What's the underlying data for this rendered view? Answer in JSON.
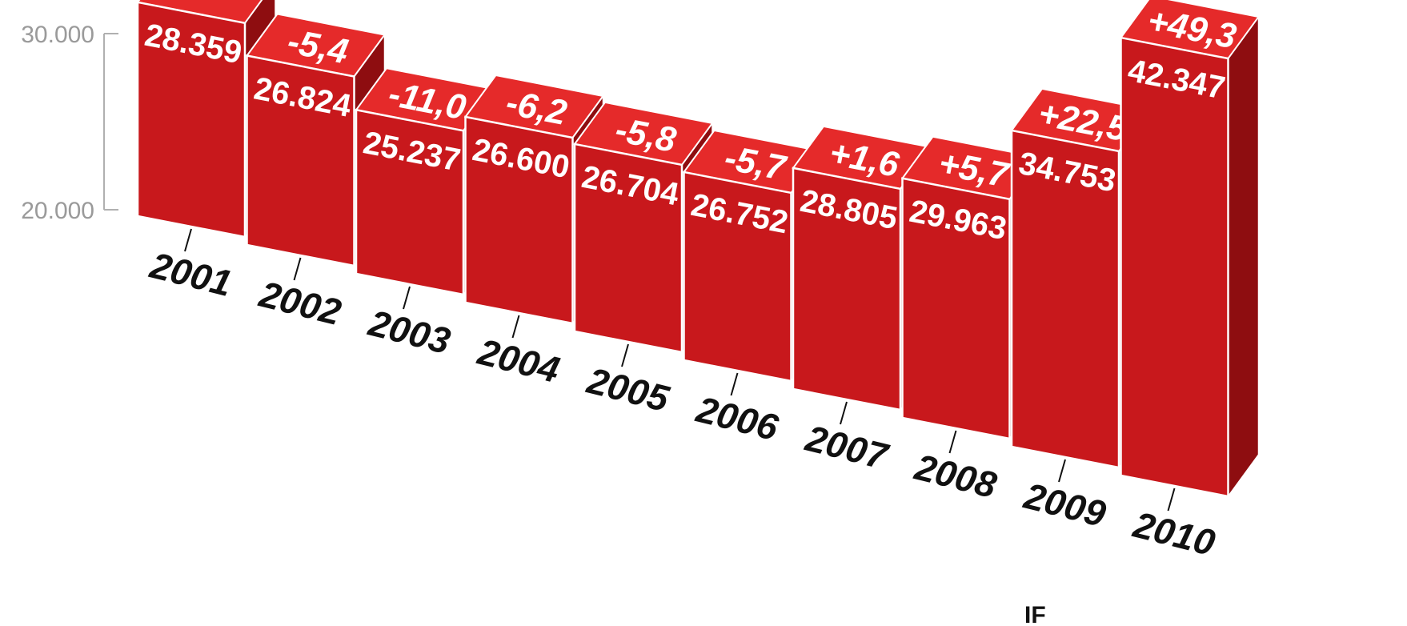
{
  "chart_data": {
    "type": "bar",
    "categories": [
      "2001",
      "2002",
      "2003",
      "2004",
      "2005",
      "2006",
      "2007",
      "2008",
      "2009",
      "2010"
    ],
    "values": [
      28359,
      26824,
      25237,
      26600,
      26704,
      26752,
      28805,
      29963,
      34753,
      42347
    ],
    "value_labels": [
      "28.359",
      "26.824",
      "25.237",
      "26.600",
      "26.704",
      "26.752",
      "28.805",
      "29.963",
      "34.753",
      "42.347"
    ],
    "change_labels": [
      "",
      "-5,4",
      "-11,0",
      "-6,2",
      "-5,8",
      "-5,7",
      "+1,6",
      "+5,7",
      "+22,5",
      "+49,3"
    ],
    "y_ticks": [
      {
        "value": 20000,
        "label": "20.000"
      },
      {
        "value": 30000,
        "label": "30.000"
      }
    ],
    "title": "",
    "xlabel": "",
    "ylabel": "",
    "colors": {
      "front": "#c8181c",
      "top": "#e52a2a",
      "side": "#8e0d10",
      "outline": "#ffffff"
    }
  },
  "footer_text": "IF"
}
